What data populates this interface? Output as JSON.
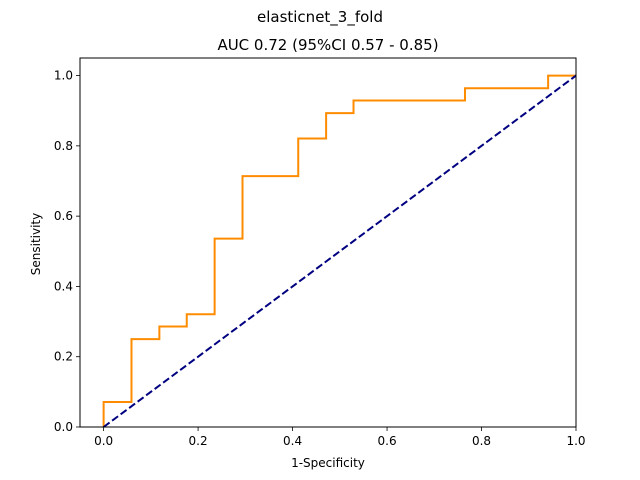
{
  "chart_data": {
    "type": "line",
    "suptitle": "elasticnet_3_fold",
    "title": "AUC 0.72 (95%CI 0.57 - 0.85)",
    "xlabel": "1-Specificity",
    "ylabel": "Sensitivity",
    "xlim": [
      -0.05,
      1.0
    ],
    "ylim": [
      0.0,
      1.05
    ],
    "xticks": [
      0.0,
      0.2,
      0.4,
      0.6,
      0.8,
      1.0
    ],
    "xtick_labels": [
      "0.0",
      "0.2",
      "0.4",
      "0.6",
      "0.8",
      "1.0"
    ],
    "yticks": [
      0.0,
      0.2,
      0.4,
      0.6,
      0.8,
      1.0
    ],
    "ytick_labels": [
      "0.0",
      "0.2",
      "0.4",
      "0.6",
      "0.8",
      "1.0"
    ],
    "grid": false,
    "series": [
      {
        "style": "solid",
        "color": "#ff8c00",
        "x": [
          0.0,
          0.0,
          0.059,
          0.059,
          0.118,
          0.118,
          0.176,
          0.176,
          0.235,
          0.235,
          0.294,
          0.294,
          0.412,
          0.412,
          0.471,
          0.471,
          0.529,
          0.529,
          0.765,
          0.765,
          0.941,
          0.941,
          1.0
        ],
        "y": [
          0.0,
          0.071,
          0.071,
          0.25,
          0.25,
          0.286,
          0.286,
          0.321,
          0.321,
          0.536,
          0.536,
          0.714,
          0.714,
          0.821,
          0.821,
          0.893,
          0.893,
          0.929,
          0.929,
          0.964,
          0.964,
          1.0,
          1.0
        ]
      },
      {
        "style": "dashed",
        "color": "#000080",
        "x": [
          0.0,
          1.0
        ],
        "y": [
          0.0,
          1.0
        ]
      }
    ]
  }
}
